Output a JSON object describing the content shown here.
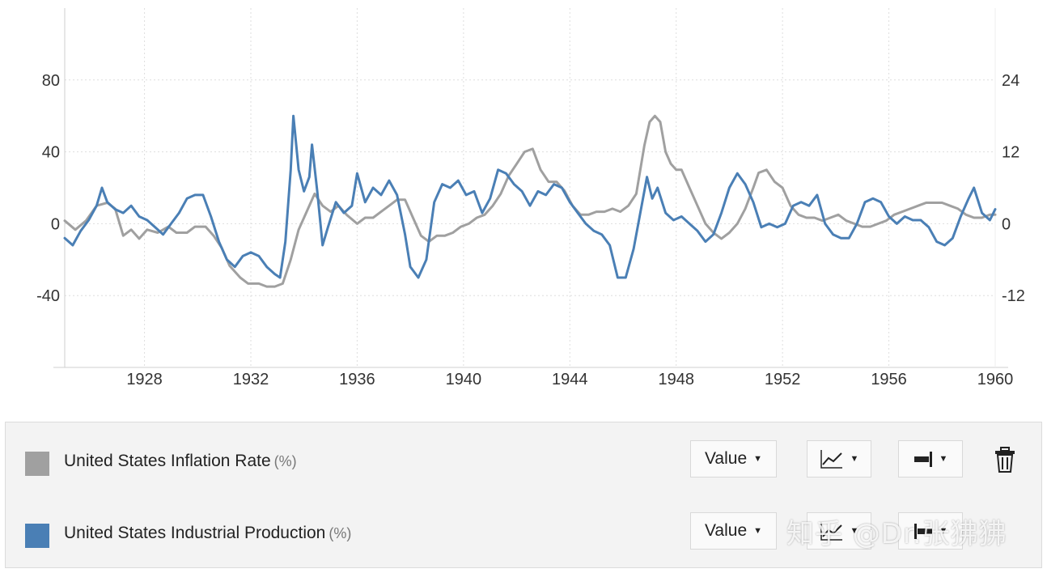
{
  "chart_data": {
    "type": "line",
    "x_range": [
      1925,
      1960
    ],
    "x_ticks": [
      "1928",
      "1932",
      "1936",
      "1940",
      "1944",
      "1948",
      "1952",
      "1956",
      "1960"
    ],
    "left_axis": {
      "ticks": [
        "80",
        "40",
        "0",
        "-40"
      ],
      "range": [
        -80,
        120
      ]
    },
    "right_axis": {
      "ticks": [
        "24",
        "12",
        "0",
        "-12"
      ],
      "range": [
        -24,
        36
      ]
    },
    "grid": true,
    "series": [
      {
        "name": "United States Inflation Rate",
        "unit": "(%)",
        "axis": "right",
        "color": "#a0a0a0",
        "points": [
          [
            1925.0,
            0.5
          ],
          [
            1925.4,
            -1.0
          ],
          [
            1925.8,
            0.5
          ],
          [
            1926.2,
            3.0
          ],
          [
            1926.6,
            3.5
          ],
          [
            1926.9,
            2.5
          ],
          [
            1927.2,
            -2.0
          ],
          [
            1927.5,
            -1.0
          ],
          [
            1927.8,
            -2.5
          ],
          [
            1928.1,
            -1.0
          ],
          [
            1928.5,
            -1.5
          ],
          [
            1928.9,
            -0.5
          ],
          [
            1929.2,
            -1.5
          ],
          [
            1929.6,
            -1.5
          ],
          [
            1929.9,
            -0.5
          ],
          [
            1930.3,
            -0.5
          ],
          [
            1930.6,
            -2.0
          ],
          [
            1930.9,
            -4.0
          ],
          [
            1931.2,
            -7.0
          ],
          [
            1931.6,
            -9.0
          ],
          [
            1931.9,
            -10.0
          ],
          [
            1932.3,
            -10.0
          ],
          [
            1932.6,
            -10.5
          ],
          [
            1932.9,
            -10.5
          ],
          [
            1933.2,
            -10.0
          ],
          [
            1933.5,
            -6.0
          ],
          [
            1933.8,
            -1.0
          ],
          [
            1934.1,
            2.0
          ],
          [
            1934.4,
            5.0
          ],
          [
            1934.7,
            3.0
          ],
          [
            1935.0,
            2.0
          ],
          [
            1935.3,
            3.0
          ],
          [
            1935.6,
            1.5
          ],
          [
            1936.0,
            0.0
          ],
          [
            1936.3,
            1.0
          ],
          [
            1936.6,
            1.0
          ],
          [
            1936.9,
            2.0
          ],
          [
            1937.2,
            3.0
          ],
          [
            1937.5,
            4.0
          ],
          [
            1937.8,
            4.0
          ],
          [
            1938.1,
            1.0
          ],
          [
            1938.4,
            -2.0
          ],
          [
            1938.7,
            -3.0
          ],
          [
            1939.0,
            -2.0
          ],
          [
            1939.3,
            -2.0
          ],
          [
            1939.6,
            -1.5
          ],
          [
            1939.9,
            -0.5
          ],
          [
            1940.2,
            0.0
          ],
          [
            1940.5,
            1.0
          ],
          [
            1940.8,
            1.5
          ],
          [
            1941.1,
            3.0
          ],
          [
            1941.4,
            5.0
          ],
          [
            1941.7,
            8.0
          ],
          [
            1942.0,
            10.0
          ],
          [
            1942.3,
            12.0
          ],
          [
            1942.6,
            12.5
          ],
          [
            1942.9,
            9.0
          ],
          [
            1943.2,
            7.0
          ],
          [
            1943.5,
            7.0
          ],
          [
            1943.8,
            5.5
          ],
          [
            1944.1,
            3.0
          ],
          [
            1944.4,
            1.5
          ],
          [
            1944.7,
            1.5
          ],
          [
            1945.0,
            2.0
          ],
          [
            1945.3,
            2.0
          ],
          [
            1945.6,
            2.5
          ],
          [
            1945.9,
            2.0
          ],
          [
            1946.2,
            3.0
          ],
          [
            1946.5,
            5.0
          ],
          [
            1946.8,
            13.0
          ],
          [
            1947.0,
            17.0
          ],
          [
            1947.2,
            18.0
          ],
          [
            1947.4,
            17.0
          ],
          [
            1947.6,
            12.0
          ],
          [
            1947.8,
            10.0
          ],
          [
            1948.0,
            9.0
          ],
          [
            1948.2,
            9.0
          ],
          [
            1948.5,
            6.0
          ],
          [
            1948.8,
            3.0
          ],
          [
            1949.1,
            0.0
          ],
          [
            1949.4,
            -1.5
          ],
          [
            1949.7,
            -2.5
          ],
          [
            1950.0,
            -1.5
          ],
          [
            1950.3,
            0.0
          ],
          [
            1950.6,
            2.5
          ],
          [
            1950.9,
            6.0
          ],
          [
            1951.1,
            8.5
          ],
          [
            1951.4,
            9.0
          ],
          [
            1951.7,
            7.0
          ],
          [
            1952.0,
            6.0
          ],
          [
            1952.3,
            3.0
          ],
          [
            1952.6,
            1.5
          ],
          [
            1952.9,
            1.0
          ],
          [
            1953.2,
            1.0
          ],
          [
            1953.5,
            0.5
          ],
          [
            1953.8,
            1.0
          ],
          [
            1954.1,
            1.5
          ],
          [
            1954.4,
            0.5
          ],
          [
            1954.7,
            0.0
          ],
          [
            1955.0,
            -0.5
          ],
          [
            1955.3,
            -0.5
          ],
          [
            1955.6,
            0.0
          ],
          [
            1955.9,
            0.5
          ],
          [
            1956.2,
            1.5
          ],
          [
            1956.5,
            2.0
          ],
          [
            1956.8,
            2.5
          ],
          [
            1957.1,
            3.0
          ],
          [
            1957.4,
            3.5
          ],
          [
            1957.7,
            3.5
          ],
          [
            1958.0,
            3.5
          ],
          [
            1958.3,
            3.0
          ],
          [
            1958.6,
            2.5
          ],
          [
            1958.9,
            1.5
          ],
          [
            1959.2,
            1.0
          ],
          [
            1959.5,
            1.0
          ],
          [
            1959.8,
            1.5
          ],
          [
            1960.0,
            1.5
          ]
        ]
      },
      {
        "name": "United States Industrial Production",
        "unit": "(%)",
        "axis": "left",
        "color": "#4a7fb5",
        "points": [
          [
            1925.0,
            -8
          ],
          [
            1925.3,
            -12
          ],
          [
            1925.6,
            -4
          ],
          [
            1925.9,
            2
          ],
          [
            1926.2,
            10
          ],
          [
            1926.4,
            20
          ],
          [
            1926.6,
            12
          ],
          [
            1926.9,
            8
          ],
          [
            1927.2,
            6
          ],
          [
            1927.5,
            10
          ],
          [
            1927.8,
            4
          ],
          [
            1928.1,
            2
          ],
          [
            1928.4,
            -2
          ],
          [
            1928.7,
            -6
          ],
          [
            1929.0,
            0
          ],
          [
            1929.3,
            6
          ],
          [
            1929.6,
            14
          ],
          [
            1929.9,
            16
          ],
          [
            1930.2,
            16
          ],
          [
            1930.5,
            4
          ],
          [
            1930.8,
            -10
          ],
          [
            1931.1,
            -20
          ],
          [
            1931.4,
            -24
          ],
          [
            1931.7,
            -18
          ],
          [
            1932.0,
            -16
          ],
          [
            1932.3,
            -18
          ],
          [
            1932.6,
            -24
          ],
          [
            1932.9,
            -28
          ],
          [
            1933.1,
            -30
          ],
          [
            1933.3,
            -10
          ],
          [
            1933.5,
            30
          ],
          [
            1933.6,
            60
          ],
          [
            1933.8,
            30
          ],
          [
            1934.0,
            18
          ],
          [
            1934.2,
            26
          ],
          [
            1934.3,
            44
          ],
          [
            1934.5,
            18
          ],
          [
            1934.7,
            -12
          ],
          [
            1934.9,
            -2
          ],
          [
            1935.2,
            12
          ],
          [
            1935.5,
            6
          ],
          [
            1935.8,
            10
          ],
          [
            1936.0,
            28
          ],
          [
            1936.3,
            12
          ],
          [
            1936.6,
            20
          ],
          [
            1936.9,
            16
          ],
          [
            1937.2,
            24
          ],
          [
            1937.5,
            16
          ],
          [
            1937.8,
            -6
          ],
          [
            1938.0,
            -24
          ],
          [
            1938.3,
            -30
          ],
          [
            1938.6,
            -20
          ],
          [
            1938.9,
            12
          ],
          [
            1939.2,
            22
          ],
          [
            1939.5,
            20
          ],
          [
            1939.8,
            24
          ],
          [
            1940.1,
            16
          ],
          [
            1940.4,
            18
          ],
          [
            1940.7,
            6
          ],
          [
            1941.0,
            14
          ],
          [
            1941.3,
            30
          ],
          [
            1941.6,
            28
          ],
          [
            1941.9,
            22
          ],
          [
            1942.2,
            18
          ],
          [
            1942.5,
            10
          ],
          [
            1942.8,
            18
          ],
          [
            1943.1,
            16
          ],
          [
            1943.4,
            22
          ],
          [
            1943.7,
            20
          ],
          [
            1944.0,
            12
          ],
          [
            1944.3,
            6
          ],
          [
            1944.6,
            0
          ],
          [
            1944.9,
            -4
          ],
          [
            1945.2,
            -6
          ],
          [
            1945.5,
            -12
          ],
          [
            1945.8,
            -30
          ],
          [
            1946.1,
            -30
          ],
          [
            1946.4,
            -14
          ],
          [
            1946.7,
            10
          ],
          [
            1946.9,
            26
          ],
          [
            1947.1,
            14
          ],
          [
            1947.3,
            20
          ],
          [
            1947.6,
            6
          ],
          [
            1947.9,
            2
          ],
          [
            1948.2,
            4
          ],
          [
            1948.5,
            0
          ],
          [
            1948.8,
            -4
          ],
          [
            1949.1,
            -10
          ],
          [
            1949.4,
            -6
          ],
          [
            1949.7,
            6
          ],
          [
            1950.0,
            20
          ],
          [
            1950.3,
            28
          ],
          [
            1950.6,
            22
          ],
          [
            1950.9,
            12
          ],
          [
            1951.2,
            -2
          ],
          [
            1951.5,
            0
          ],
          [
            1951.8,
            -2
          ],
          [
            1952.1,
            0
          ],
          [
            1952.4,
            10
          ],
          [
            1952.7,
            12
          ],
          [
            1953.0,
            10
          ],
          [
            1953.3,
            16
          ],
          [
            1953.6,
            0
          ],
          [
            1953.9,
            -6
          ],
          [
            1954.2,
            -8
          ],
          [
            1954.5,
            -8
          ],
          [
            1954.8,
            0
          ],
          [
            1955.1,
            12
          ],
          [
            1955.4,
            14
          ],
          [
            1955.7,
            12
          ],
          [
            1956.0,
            4
          ],
          [
            1956.3,
            0
          ],
          [
            1956.6,
            4
          ],
          [
            1956.9,
            2
          ],
          [
            1957.2,
            2
          ],
          [
            1957.5,
            -2
          ],
          [
            1957.8,
            -10
          ],
          [
            1958.1,
            -12
          ],
          [
            1958.4,
            -8
          ],
          [
            1958.7,
            4
          ],
          [
            1959.0,
            14
          ],
          [
            1959.2,
            20
          ],
          [
            1959.5,
            6
          ],
          [
            1959.8,
            2
          ],
          [
            1960.0,
            8
          ]
        ]
      }
    ]
  },
  "legend": {
    "rows": [
      {
        "name": "United States Inflation Rate",
        "unit": "(%)",
        "color": "#a0a0a0",
        "value_label": "Value"
      },
      {
        "name": "United States Industrial Production",
        "unit": "(%)",
        "color": "#4a7fb5",
        "value_label": "Value"
      }
    ]
  },
  "watermark": "知乎 @Dr.张狒狒"
}
